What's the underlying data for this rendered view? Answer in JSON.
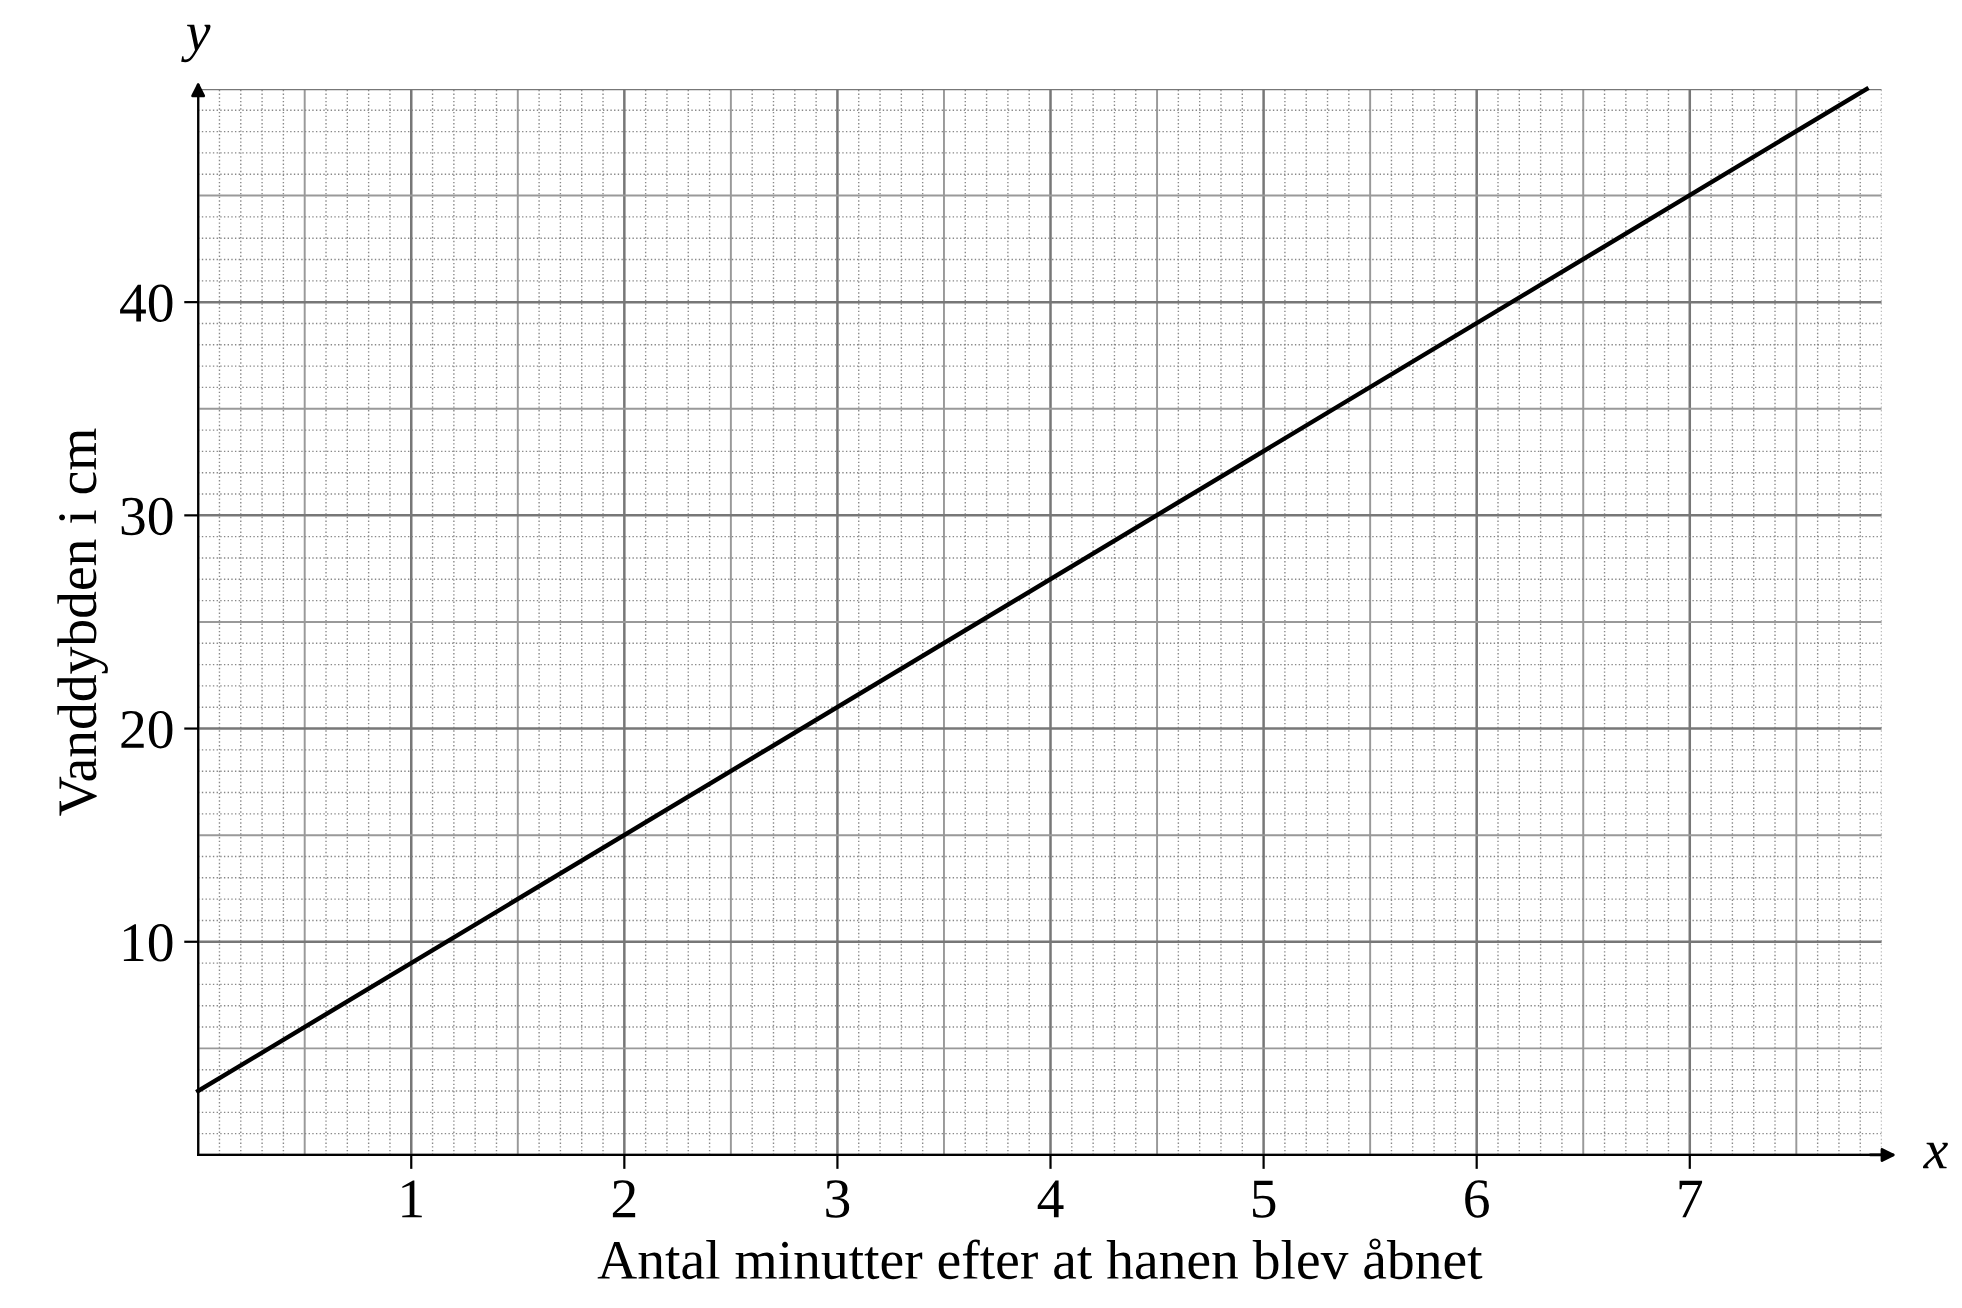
{
  "chart_data": {
    "type": "line",
    "xlabel": "Antal minutter efter at hanen blev åbnet",
    "ylabel": "Vanddybden i cm",
    "x": [
      0,
      7.83
    ],
    "series": [
      {
        "color": "#000000",
        "values": [
          3,
          50
        ]
      }
    ],
    "xlim": [
      0,
      7.9
    ],
    "ylim": [
      0,
      50
    ],
    "xticks": [
      1,
      2,
      3,
      4,
      5,
      6,
      7
    ],
    "yticks": [
      10,
      20,
      30,
      40
    ],
    "grid": true,
    "marker": "none",
    "line_style": "solid",
    "annotations": [
      "x",
      "y"
    ]
  }
}
